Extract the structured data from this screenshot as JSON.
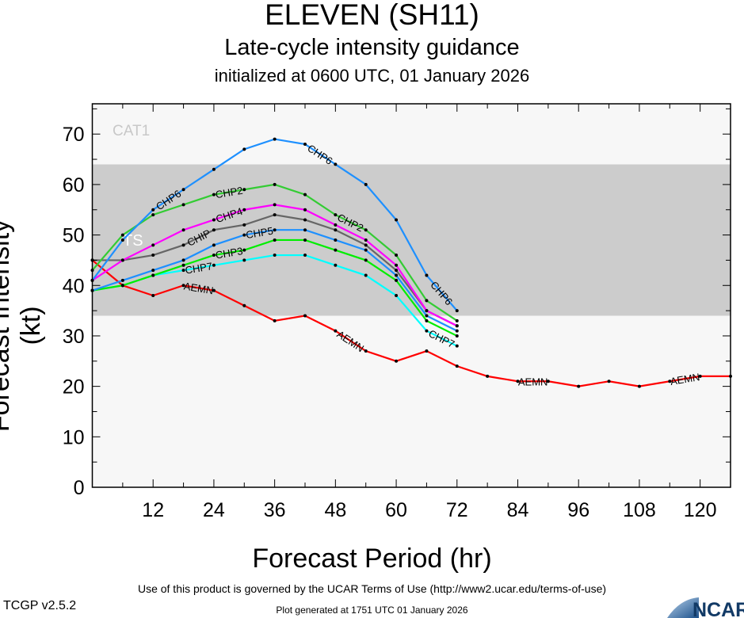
{
  "chart_data": {
    "type": "line",
    "title": "ELEVEN (SH11)",
    "subtitle": "Late-cycle intensity guidance",
    "init_text": "initialized at 0600 UTC, 01 January 2026",
    "xlabel": "Forecast Period (hr)",
    "ylabel": "Forecast Intensity (kt)",
    "xlim": [
      0,
      126
    ],
    "ylim": [
      0,
      76
    ],
    "xticks": [
      12,
      24,
      36,
      48,
      60,
      72,
      84,
      96,
      108,
      120
    ],
    "yticks": [
      0,
      10,
      20,
      30,
      40,
      50,
      60,
      70
    ],
    "grid": false,
    "bands": [
      {
        "label": "TS",
        "from": 34,
        "to": 64,
        "color": "#cccccc",
        "label_color": "#ffffff"
      },
      {
        "label": "CAT1",
        "from": 64,
        "to": 76,
        "color": "#f7f7f7",
        "label_color": "#c8c8c8"
      }
    ],
    "series": [
      {
        "name": "AEMN",
        "color": "#ff0000",
        "x": [
          0,
          6,
          12,
          18,
          24,
          30,
          36,
          42,
          48,
          54,
          60,
          66,
          72,
          78,
          84,
          90,
          96,
          102,
          108,
          114,
          120,
          126
        ],
        "y": [
          45,
          40,
          38,
          40,
          39,
          36,
          33,
          34,
          31,
          27,
          25,
          27,
          24,
          22,
          21,
          21,
          20,
          21,
          20,
          21,
          22,
          22
        ]
      },
      {
        "name": "CHP7",
        "color": "#00ffff",
        "x": [
          0,
          6,
          12,
          18,
          24,
          30,
          36,
          42,
          48,
          54,
          60,
          66,
          72
        ],
        "y": [
          39,
          40,
          42,
          43,
          44,
          45,
          46,
          46,
          44,
          42,
          38,
          31,
          28
        ]
      },
      {
        "name": "CHP3",
        "color": "#00ee00",
        "x": [
          0,
          6,
          12,
          18,
          24,
          30,
          36,
          42,
          48,
          54,
          60,
          66,
          72
        ],
        "y": [
          39,
          40,
          42,
          44,
          46,
          47,
          49,
          49,
          47,
          45,
          41,
          33,
          30
        ]
      },
      {
        "name": "CHP5",
        "color": "#1e90ff",
        "x": [
          0,
          6,
          12,
          18,
          24,
          30,
          36,
          42,
          48,
          54,
          60,
          66,
          72
        ],
        "y": [
          39,
          41,
          43,
          45,
          48,
          50,
          51,
          51,
          49,
          47,
          42,
          34,
          31
        ]
      },
      {
        "name": "CHIP",
        "color": "#666666",
        "x": [
          0,
          6,
          12,
          18,
          24,
          30,
          36,
          42,
          48,
          54,
          60,
          66,
          72
        ],
        "y": [
          45,
          45,
          46,
          48,
          51,
          52,
          54,
          53,
          51,
          48,
          43,
          35,
          32
        ]
      },
      {
        "name": "CHP4",
        "color": "#ff00ff",
        "x": [
          0,
          6,
          12,
          18,
          24,
          30,
          36,
          42,
          48,
          54,
          60,
          66,
          72
        ],
        "y": [
          41,
          45,
          48,
          51,
          53,
          55,
          56,
          55,
          52,
          49,
          44,
          35,
          32
        ]
      },
      {
        "name": "CHP2",
        "color": "#33cc33",
        "x": [
          0,
          6,
          12,
          18,
          24,
          30,
          36,
          42,
          48,
          54,
          60,
          66,
          72
        ],
        "y": [
          43,
          50,
          54,
          56,
          58,
          59,
          60,
          58,
          54,
          51,
          46,
          37,
          33
        ]
      },
      {
        "name": "CHP6",
        "color": "#1e90ff",
        "x": [
          0,
          6,
          12,
          18,
          24,
          30,
          36,
          42,
          48,
          54,
          60,
          66,
          72
        ],
        "y": [
          41,
          49,
          55,
          59,
          63,
          67,
          69,
          68,
          64,
          60,
          53,
          42,
          35
        ]
      }
    ]
  },
  "footer": {
    "version": "TCGP v2.5.2",
    "terms": "Use of this product is governed by the UCAR Terms of Use (http://www2.ucar.edu/terms-of-use)",
    "generated": "Plot generated at 1751 UTC   01 January 2026",
    "logo_text": "NCAR"
  }
}
